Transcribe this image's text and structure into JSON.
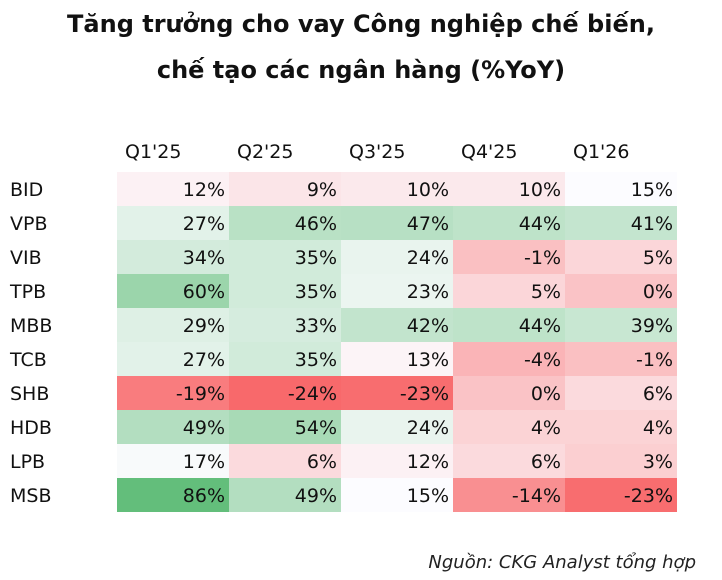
{
  "chart_data": {
    "type": "heatmap",
    "title_line1": "Tăng trưởng cho vay Công nghiệp chế biến,",
    "title_line2": "chế tạo các ngân hàng (%YoY)",
    "columns": [
      "Q1'25",
      "Q2'25",
      "Q3'25",
      "Q4'25",
      "Q1'26"
    ],
    "rows": [
      {
        "name": "BID",
        "values": [
          12,
          9,
          10,
          10,
          15
        ]
      },
      {
        "name": "VPB",
        "values": [
          27,
          46,
          47,
          44,
          41
        ]
      },
      {
        "name": "VIB",
        "values": [
          34,
          35,
          24,
          -1,
          5
        ]
      },
      {
        "name": "TPB",
        "values": [
          60,
          35,
          23,
          5,
          0
        ]
      },
      {
        "name": "MBB",
        "values": [
          29,
          33,
          42,
          44,
          39
        ]
      },
      {
        "name": "TCB",
        "values": [
          27,
          35,
          13,
          -4,
          -1
        ]
      },
      {
        "name": "SHB",
        "values": [
          -19,
          -24,
          -23,
          0,
          6
        ]
      },
      {
        "name": "HDB",
        "values": [
          49,
          54,
          24,
          4,
          4
        ]
      },
      {
        "name": "LPB",
        "values": [
          17,
          6,
          12,
          6,
          3
        ]
      },
      {
        "name": "MSB",
        "values": [
          86,
          49,
          15,
          -14,
          -23
        ]
      }
    ],
    "unit": "%",
    "color_scale": {
      "low": "#f8696b",
      "mid": "#fcfcff",
      "high": "#63be7b"
    },
    "source": "Nguồn: CKG Analyst tổng hợp"
  }
}
